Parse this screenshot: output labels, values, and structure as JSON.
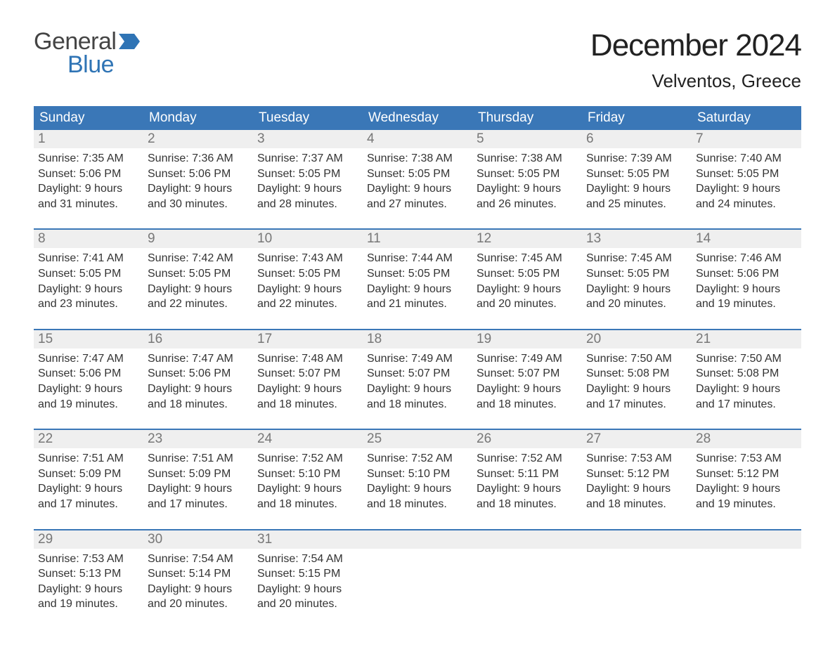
{
  "brand": {
    "text1": "General",
    "text2": "Blue",
    "color1": "#444444",
    "color2": "#2f74b5"
  },
  "title": "December 2024",
  "location": "Velventos, Greece",
  "header_bg": "#3a77b7",
  "daynum_bg": "#efefef",
  "text_color": "#333333",
  "days_of_week": [
    "Sunday",
    "Monday",
    "Tuesday",
    "Wednesday",
    "Thursday",
    "Friday",
    "Saturday"
  ],
  "weeks": [
    [
      {
        "n": "1",
        "sunrise": "7:35 AM",
        "sunset": "5:06 PM",
        "dl1": "9 hours",
        "dl2": "and 31 minutes."
      },
      {
        "n": "2",
        "sunrise": "7:36 AM",
        "sunset": "5:06 PM",
        "dl1": "9 hours",
        "dl2": "and 30 minutes."
      },
      {
        "n": "3",
        "sunrise": "7:37 AM",
        "sunset": "5:05 PM",
        "dl1": "9 hours",
        "dl2": "and 28 minutes."
      },
      {
        "n": "4",
        "sunrise": "7:38 AM",
        "sunset": "5:05 PM",
        "dl1": "9 hours",
        "dl2": "and 27 minutes."
      },
      {
        "n": "5",
        "sunrise": "7:38 AM",
        "sunset": "5:05 PM",
        "dl1": "9 hours",
        "dl2": "and 26 minutes."
      },
      {
        "n": "6",
        "sunrise": "7:39 AM",
        "sunset": "5:05 PM",
        "dl1": "9 hours",
        "dl2": "and 25 minutes."
      },
      {
        "n": "7",
        "sunrise": "7:40 AM",
        "sunset": "5:05 PM",
        "dl1": "9 hours",
        "dl2": "and 24 minutes."
      }
    ],
    [
      {
        "n": "8",
        "sunrise": "7:41 AM",
        "sunset": "5:05 PM",
        "dl1": "9 hours",
        "dl2": "and 23 minutes."
      },
      {
        "n": "9",
        "sunrise": "7:42 AM",
        "sunset": "5:05 PM",
        "dl1": "9 hours",
        "dl2": "and 22 minutes."
      },
      {
        "n": "10",
        "sunrise": "7:43 AM",
        "sunset": "5:05 PM",
        "dl1": "9 hours",
        "dl2": "and 22 minutes."
      },
      {
        "n": "11",
        "sunrise": "7:44 AM",
        "sunset": "5:05 PM",
        "dl1": "9 hours",
        "dl2": "and 21 minutes."
      },
      {
        "n": "12",
        "sunrise": "7:45 AM",
        "sunset": "5:05 PM",
        "dl1": "9 hours",
        "dl2": "and 20 minutes."
      },
      {
        "n": "13",
        "sunrise": "7:45 AM",
        "sunset": "5:05 PM",
        "dl1": "9 hours",
        "dl2": "and 20 minutes."
      },
      {
        "n": "14",
        "sunrise": "7:46 AM",
        "sunset": "5:06 PM",
        "dl1": "9 hours",
        "dl2": "and 19 minutes."
      }
    ],
    [
      {
        "n": "15",
        "sunrise": "7:47 AM",
        "sunset": "5:06 PM",
        "dl1": "9 hours",
        "dl2": "and 19 minutes."
      },
      {
        "n": "16",
        "sunrise": "7:47 AM",
        "sunset": "5:06 PM",
        "dl1": "9 hours",
        "dl2": "and 18 minutes."
      },
      {
        "n": "17",
        "sunrise": "7:48 AM",
        "sunset": "5:07 PM",
        "dl1": "9 hours",
        "dl2": "and 18 minutes."
      },
      {
        "n": "18",
        "sunrise": "7:49 AM",
        "sunset": "5:07 PM",
        "dl1": "9 hours",
        "dl2": "and 18 minutes."
      },
      {
        "n": "19",
        "sunrise": "7:49 AM",
        "sunset": "5:07 PM",
        "dl1": "9 hours",
        "dl2": "and 18 minutes."
      },
      {
        "n": "20",
        "sunrise": "7:50 AM",
        "sunset": "5:08 PM",
        "dl1": "9 hours",
        "dl2": "and 17 minutes."
      },
      {
        "n": "21",
        "sunrise": "7:50 AM",
        "sunset": "5:08 PM",
        "dl1": "9 hours",
        "dl2": "and 17 minutes."
      }
    ],
    [
      {
        "n": "22",
        "sunrise": "7:51 AM",
        "sunset": "5:09 PM",
        "dl1": "9 hours",
        "dl2": "and 17 minutes."
      },
      {
        "n": "23",
        "sunrise": "7:51 AM",
        "sunset": "5:09 PM",
        "dl1": "9 hours",
        "dl2": "and 17 minutes."
      },
      {
        "n": "24",
        "sunrise": "7:52 AM",
        "sunset": "5:10 PM",
        "dl1": "9 hours",
        "dl2": "and 18 minutes."
      },
      {
        "n": "25",
        "sunrise": "7:52 AM",
        "sunset": "5:10 PM",
        "dl1": "9 hours",
        "dl2": "and 18 minutes."
      },
      {
        "n": "26",
        "sunrise": "7:52 AM",
        "sunset": "5:11 PM",
        "dl1": "9 hours",
        "dl2": "and 18 minutes."
      },
      {
        "n": "27",
        "sunrise": "7:53 AM",
        "sunset": "5:12 PM",
        "dl1": "9 hours",
        "dl2": "and 18 minutes."
      },
      {
        "n": "28",
        "sunrise": "7:53 AM",
        "sunset": "5:12 PM",
        "dl1": "9 hours",
        "dl2": "and 19 minutes."
      }
    ],
    [
      {
        "n": "29",
        "sunrise": "7:53 AM",
        "sunset": "5:13 PM",
        "dl1": "9 hours",
        "dl2": "and 19 minutes."
      },
      {
        "n": "30",
        "sunrise": "7:54 AM",
        "sunset": "5:14 PM",
        "dl1": "9 hours",
        "dl2": "and 20 minutes."
      },
      {
        "n": "31",
        "sunrise": "7:54 AM",
        "sunset": "5:15 PM",
        "dl1": "9 hours",
        "dl2": "and 20 minutes."
      },
      null,
      null,
      null,
      null
    ]
  ],
  "labels": {
    "sunrise": "Sunrise:",
    "sunset": "Sunset:",
    "daylight": "Daylight:"
  }
}
